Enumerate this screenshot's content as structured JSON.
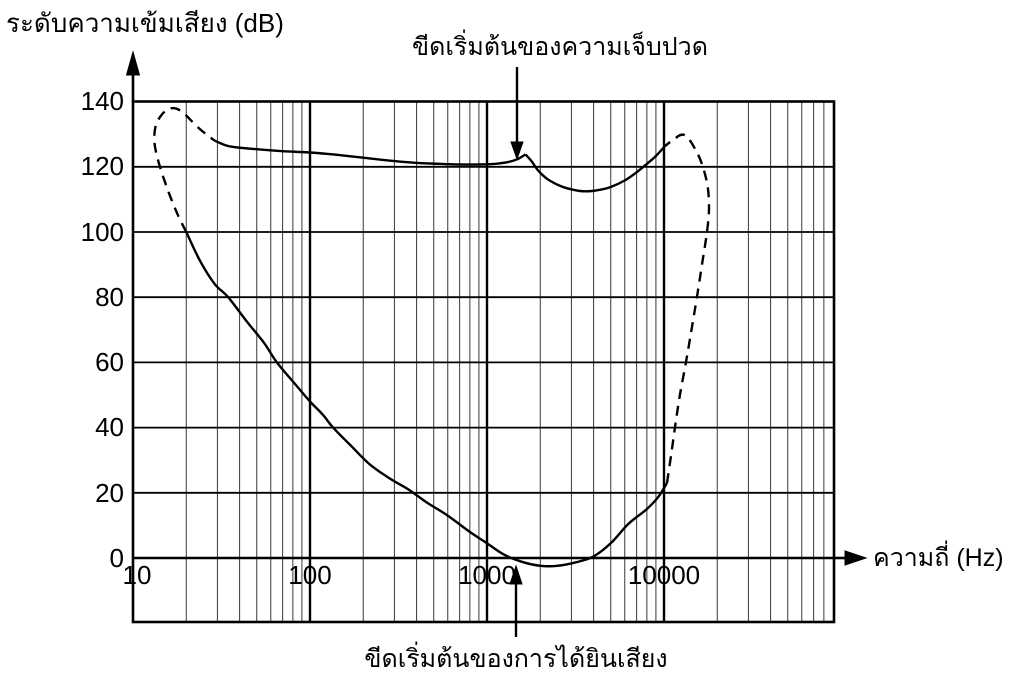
{
  "colors": {
    "background": "#ffffff",
    "curve": "#000000",
    "grid_major": "#000000",
    "grid_minor": "#4a4a4a",
    "text": "#000000"
  },
  "chart_data": {
    "type": "line",
    "title": "",
    "ylabel": "ระดับความเข้มเสียง (dB)",
    "xlabel": "ความถี่ (Hz)",
    "x_scale": "log",
    "x_range_hz": [
      10,
      94000
    ],
    "x_tick_values": [
      10,
      100,
      1000,
      10000
    ],
    "x_tick_labels": [
      "10",
      "100",
      "1000",
      "10000"
    ],
    "y_range_db": [
      -20,
      140
    ],
    "y_tick_values_top_to_bottom": [
      140,
      120,
      100,
      80,
      60,
      40,
      20,
      0
    ],
    "y_tick_labels_top_to_bottom": [
      "140",
      "120",
      "100",
      "80",
      "60",
      "40",
      "20",
      "0"
    ],
    "grid": "vertical log minor+major lines; horizontal major lines every 20 dB",
    "legend": "none",
    "series": [
      {
        "name": "threshold-of-hearing",
        "line": "solid",
        "points": [
          [
            20,
            100
          ],
          [
            24,
            91
          ],
          [
            29,
            84
          ],
          [
            34.5,
            80
          ],
          [
            44,
            72.5
          ],
          [
            55,
            66
          ],
          [
            65,
            60
          ],
          [
            82,
            53.5
          ],
          [
            100,
            48
          ],
          [
            118,
            44
          ],
          [
            135,
            40
          ],
          [
            170,
            34.5
          ],
          [
            220,
            28.5
          ],
          [
            290,
            24
          ],
          [
            360,
            21
          ],
          [
            458,
            17
          ],
          [
            600,
            13
          ],
          [
            800,
            8
          ],
          [
            1000,
            4.5
          ],
          [
            1250,
            1
          ],
          [
            1600,
            -1.3
          ],
          [
            2000,
            -2.4
          ],
          [
            2500,
            -2.4
          ],
          [
            3200,
            -1.3
          ],
          [
            4000,
            0.5
          ],
          [
            5000,
            4.5
          ],
          [
            6300,
            10.5
          ],
          [
            8000,
            15
          ],
          [
            9300,
            18.8
          ],
          [
            10400,
            23
          ]
        ]
      },
      {
        "name": "threshold-of-pain-left",
        "line": "solid",
        "points": [
          [
            29,
            128
          ],
          [
            35,
            126.3
          ],
          [
            50,
            125.4
          ],
          [
            70,
            124.8
          ],
          [
            100,
            124.4
          ],
          [
            140,
            123.7
          ],
          [
            200,
            122.8
          ],
          [
            280,
            121.9
          ],
          [
            400,
            121.2
          ],
          [
            550,
            120.9
          ],
          [
            700,
            120.7
          ],
          [
            900,
            120.7
          ],
          [
            1100,
            120.9
          ],
          [
            1300,
            121.4
          ],
          [
            1480,
            122.3
          ],
          [
            1650,
            123.8
          ]
        ]
      },
      {
        "name": "threshold-of-pain-right",
        "line": "solid",
        "points": [
          [
            1650,
            123.8
          ],
          [
            1780,
            121.8
          ],
          [
            1950,
            118.8
          ],
          [
            2200,
            116.2
          ],
          [
            2600,
            114.1
          ],
          [
            3100,
            112.9
          ],
          [
            3600,
            112.5
          ],
          [
            4300,
            112.9
          ],
          [
            5000,
            113.8
          ],
          [
            6000,
            115.8
          ],
          [
            7000,
            118.3
          ],
          [
            8000,
            120.9
          ],
          [
            9000,
            123.3
          ],
          [
            10100,
            126.3
          ]
        ]
      },
      {
        "name": "low-frequency-boundary",
        "line": "dashed",
        "points": [
          [
            20,
            100
          ],
          [
            18,
            105
          ],
          [
            16.2,
            111
          ],
          [
            14.8,
            117
          ],
          [
            13.7,
            123
          ],
          [
            13.2,
            128
          ],
          [
            13.4,
            132.3
          ],
          [
            14.3,
            135.5
          ],
          [
            15.5,
            137.4
          ],
          [
            16.8,
            138
          ],
          [
            18.2,
            137.5
          ],
          [
            19.6,
            136.2
          ],
          [
            21.2,
            134.3
          ],
          [
            23.5,
            131.9
          ],
          [
            26,
            129.9
          ],
          [
            29,
            128
          ]
        ]
      },
      {
        "name": "high-frequency-boundary",
        "line": "dashed",
        "points": [
          [
            10400,
            23
          ],
          [
            11000,
            32
          ],
          [
            11600,
            41
          ],
          [
            12300,
            50
          ],
          [
            13400,
            61
          ],
          [
            14300,
            70
          ],
          [
            15350,
            80
          ],
          [
            16500,
            91
          ],
          [
            17500,
            100
          ],
          [
            17950,
            107
          ],
          [
            17700,
            113.5
          ],
          [
            16800,
            119
          ],
          [
            15800,
            123
          ],
          [
            14800,
            126
          ],
          [
            13800,
            128.6
          ],
          [
            13000,
            129.8
          ],
          [
            12200,
            129.6
          ],
          [
            11400,
            128.4
          ],
          [
            10700,
            127.4
          ],
          [
            10100,
            126.3
          ]
        ]
      }
    ],
    "annotations": [
      {
        "text": "ขีดเริ่มต้นของความเจ็บปวด",
        "arrow": "down",
        "target_hz": 1500,
        "target_db": 121.5
      },
      {
        "text": "ขีดเริ่มต้นของการได้ยินเสียง",
        "arrow": "up",
        "target_hz": 1500,
        "target_db": -1.5
      }
    ]
  }
}
